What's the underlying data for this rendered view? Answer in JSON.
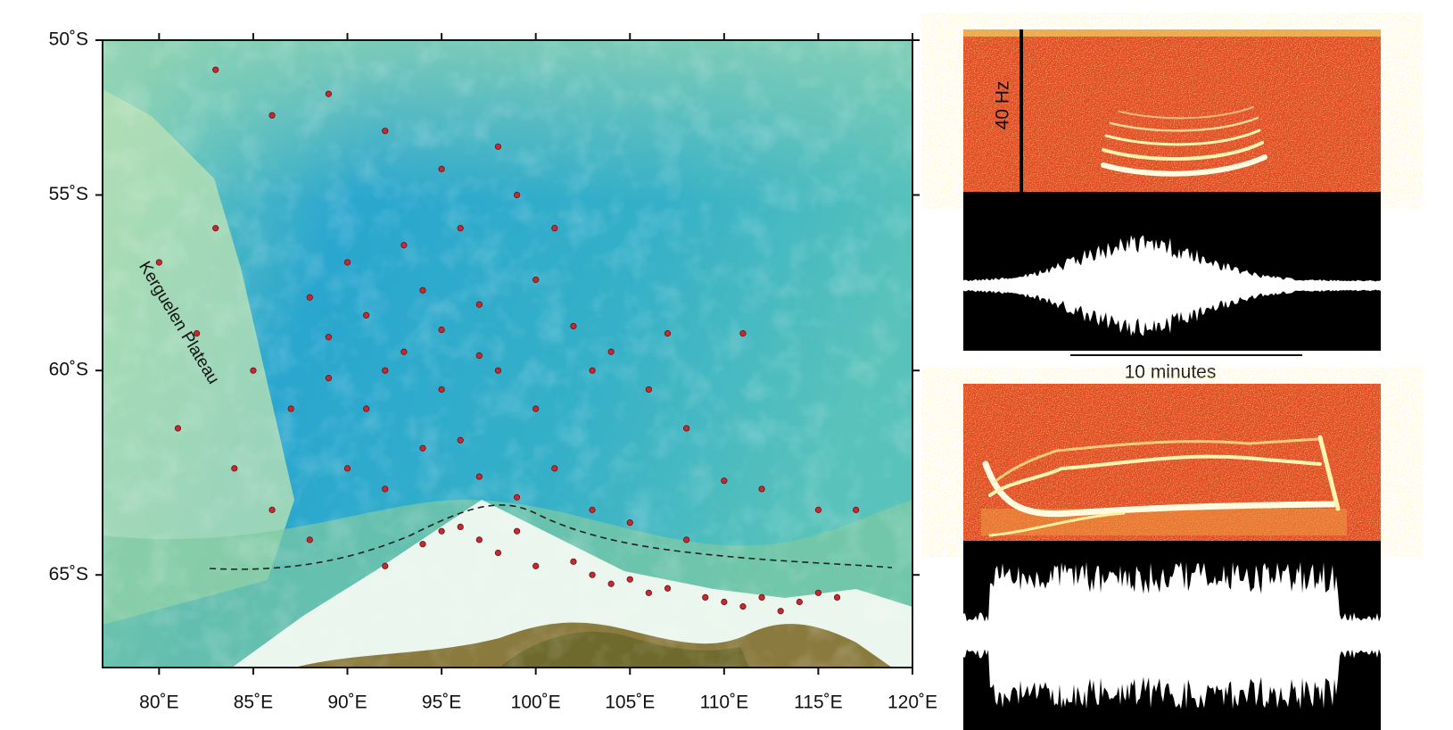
{
  "chart_data": {
    "type": "scatter",
    "annotations": [
      "Kerguelen Plateau"
    ],
    "color": "#c42a2e",
    "xlim": [
      77,
      120
    ],
    "ylim": [
      -50,
      -67
    ],
    "xticks": [
      {
        "value": 80,
        "label": "80˚E"
      },
      {
        "value": 85,
        "label": "85˚E"
      },
      {
        "value": 90,
        "label": "90˚E"
      },
      {
        "value": 95,
        "label": "95˚E"
      },
      {
        "value": 100,
        "label": "100˚E"
      },
      {
        "value": 105,
        "label": "105˚E"
      },
      {
        "value": 110,
        "label": "110˚E"
      },
      {
        "value": 115,
        "label": "115˚E"
      },
      {
        "value": 120,
        "label": "120˚E"
      }
    ],
    "yticks": [
      {
        "value": -50,
        "label": "50˚S"
      },
      {
        "value": -55,
        "label": "55˚S"
      },
      {
        "value": -60,
        "label": "60˚S"
      },
      {
        "value": -65,
        "label": "65˚S"
      }
    ],
    "x": [
      83,
      86,
      89,
      92,
      95,
      98,
      99,
      96,
      93,
      90,
      88,
      91,
      94,
      97,
      100,
      102,
      104,
      106,
      108,
      110,
      112,
      115,
      117,
      85,
      87,
      84,
      86,
      89,
      91,
      93,
      95,
      96,
      98,
      100,
      101,
      99,
      97,
      94,
      92,
      90,
      88,
      92,
      94,
      95,
      96,
      97,
      98,
      99,
      100,
      102,
      103,
      104,
      105,
      106,
      107,
      109,
      110,
      111,
      112,
      113,
      114,
      115,
      116,
      108,
      105,
      103,
      80,
      82,
      81,
      83,
      101,
      103,
      107,
      111,
      95,
      97,
      92,
      89
    ],
    "values": [
      -51,
      -52.5,
      -51.8,
      -53,
      -54.2,
      -53.5,
      -55,
      -56,
      -56.5,
      -57,
      -58,
      -58.5,
      -57.8,
      -58.2,
      -57.5,
      -58.8,
      -59.5,
      -60.5,
      -61.5,
      -62.8,
      -63,
      -63.5,
      -63.5,
      -60,
      -61,
      -62.5,
      -63.5,
      -60.2,
      -61,
      -59.5,
      -60.5,
      -61.8,
      -60,
      -61,
      -62.5,
      -63.2,
      -62.7,
      -62,
      -63,
      -62.5,
      -64.2,
      -64.8,
      -64.3,
      -64,
      -63.9,
      -64.2,
      -64.5,
      -64,
      -64.8,
      -64.7,
      -65,
      -65.2,
      -65.1,
      -65.4,
      -65.3,
      -65.5,
      -65.6,
      -65.7,
      -65.5,
      -65.8,
      -65.6,
      -65.4,
      -65.5,
      -64.2,
      -63.8,
      -63.5,
      -57,
      -59,
      -61.5,
      -56,
      -56,
      -60,
      -59,
      -59,
      -58.9,
      -59.6,
      -60,
      -59.1
    ]
  },
  "spectrogram": {
    "frequency_label": "40 Hz",
    "time_label": "10 minutes"
  }
}
